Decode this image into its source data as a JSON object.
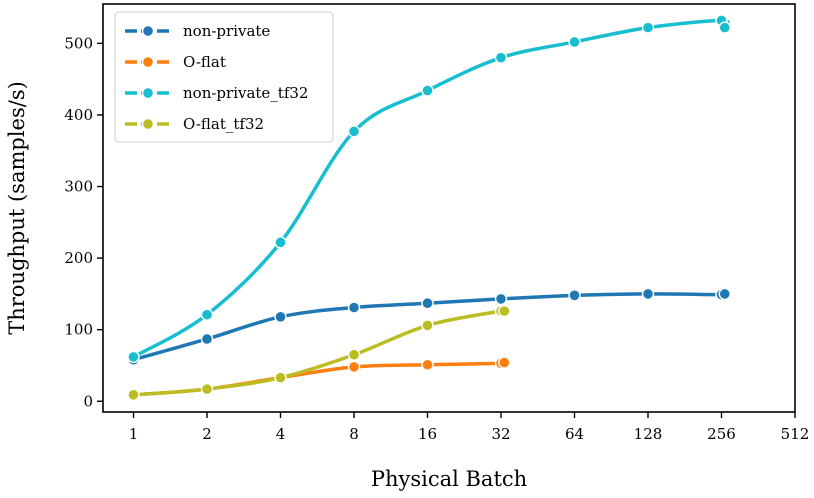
{
  "chart_data": {
    "type": "line",
    "xlabel": "Physical Batch",
    "ylabel": "Throughput (samples/s)",
    "x_scale": "log2",
    "x_ticks": [
      1,
      2,
      4,
      8,
      16,
      32,
      64,
      128,
      256,
      512
    ],
    "x_tick_labels": [
      "1",
      "2",
      "4",
      "8",
      "16",
      "32",
      "64",
      "128",
      "256",
      "512"
    ],
    "y_ticks": [
      0,
      100,
      200,
      300,
      400,
      500
    ],
    "y_tick_labels": [
      "0",
      "100",
      "200",
      "300",
      "400",
      "500"
    ],
    "xlim": [
      0.75,
      512
    ],
    "ylim": [
      -15,
      555
    ],
    "legend_position": "top-left",
    "series": [
      {
        "name": "non-private",
        "color": "#1f77b4",
        "x": [
          1,
          2,
          4,
          8,
          16,
          32,
          64,
          128,
          256,
          264
        ],
        "y": [
          58,
          87,
          118,
          131,
          137,
          143,
          148,
          150,
          149,
          150
        ]
      },
      {
        "name": "O-flat",
        "color": "#ff7f0e",
        "x": [
          1,
          2,
          4,
          8,
          16,
          32,
          33
        ],
        "y": [
          9,
          17,
          33,
          48,
          51,
          53,
          54
        ]
      },
      {
        "name": "non-private_tf32",
        "color": "#17becf",
        "x": [
          1,
          2,
          4,
          8,
          16,
          32,
          64,
          128,
          256,
          264
        ],
        "y": [
          62,
          121,
          222,
          377,
          434,
          480,
          502,
          522,
          532,
          522
        ]
      },
      {
        "name": "O-flat_tf32",
        "color": "#bcbd22",
        "x": [
          1,
          2,
          4,
          8,
          16,
          32,
          33
        ],
        "y": [
          9,
          17,
          33,
          65,
          106,
          126,
          126
        ]
      }
    ]
  }
}
